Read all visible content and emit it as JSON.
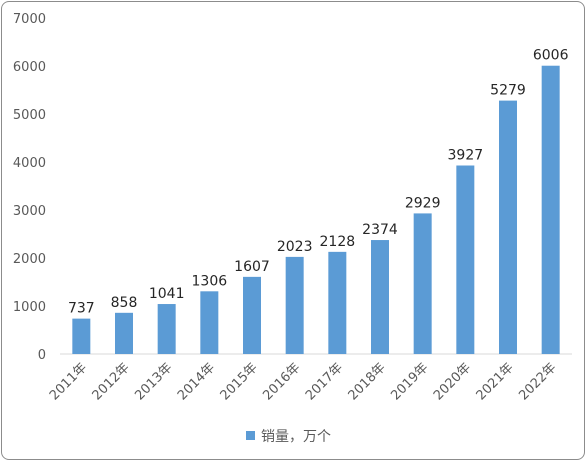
{
  "chart_data": {
    "type": "bar",
    "categories": [
      "2011年",
      "2012年",
      "2013年",
      "2014年",
      "2015年",
      "2016年",
      "2017年",
      "2018年",
      "2019年",
      "2020年",
      "2021年",
      "2022年"
    ],
    "series": [
      {
        "name": "销量，万个",
        "values": [
          737,
          858,
          1041,
          1306,
          1607,
          2023,
          2128,
          2374,
          2929,
          3927,
          5279,
          6006
        ]
      }
    ],
    "y_ticks": [
      "0",
      "1000",
      "2000",
      "3000",
      "4000",
      "5000",
      "6000",
      "7000"
    ],
    "ylim": [
      0,
      7000
    ],
    "grid": false,
    "legend_position": "bottom",
    "colors": {
      "bar": "#5b9bd5"
    }
  }
}
